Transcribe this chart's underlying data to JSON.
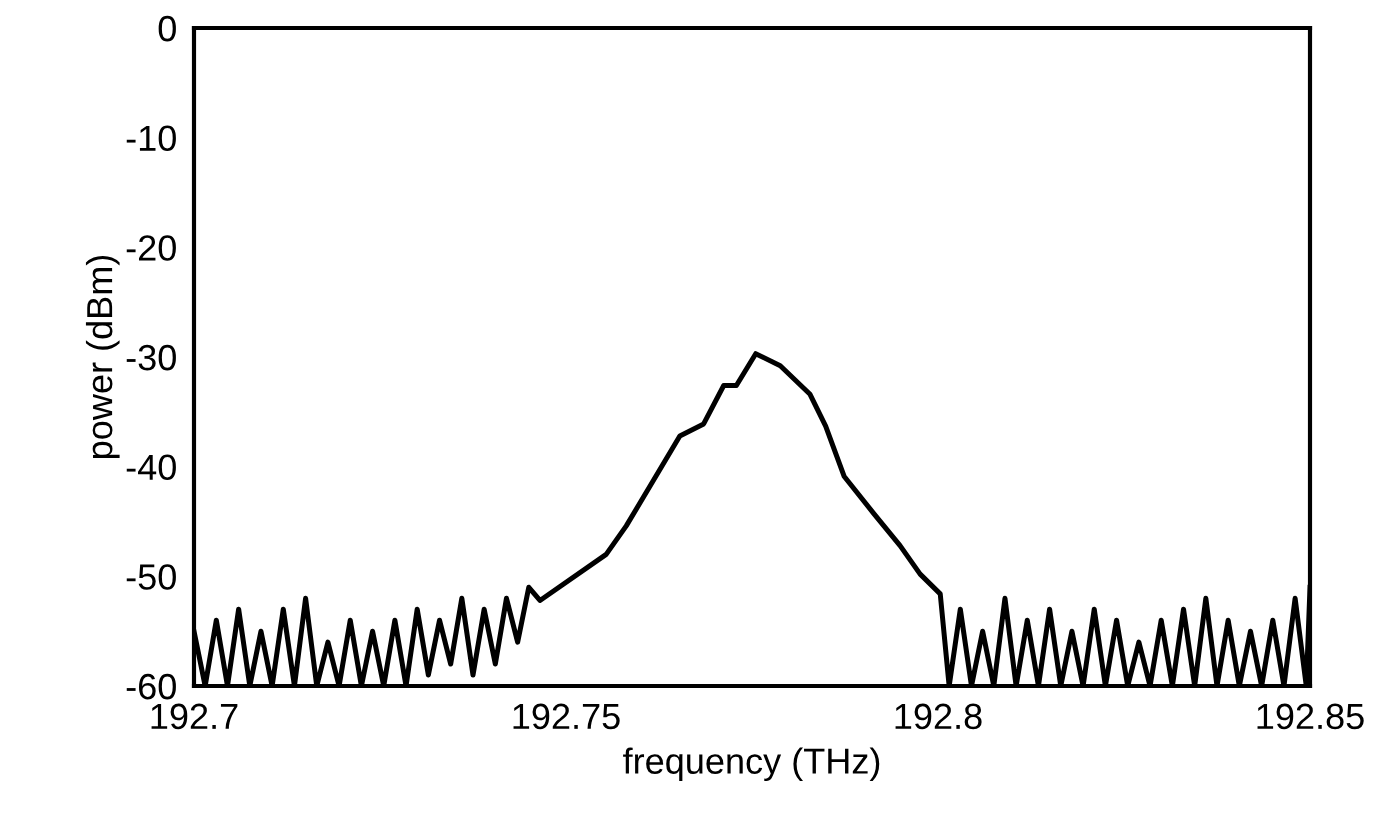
{
  "chart_data": {
    "type": "line",
    "xlabel": "frequency (THz)",
    "ylabel": "power (dBm)",
    "x": [
      192.7,
      192.7015,
      192.703,
      192.7045,
      192.706,
      192.7075,
      192.709,
      192.7105,
      192.712,
      192.7135,
      192.715,
      192.7165,
      192.718,
      192.7195,
      192.721,
      192.7225,
      192.724,
      192.7255,
      192.727,
      192.7285,
      192.73,
      192.7315,
      192.733,
      192.7345,
      192.736,
      192.7375,
      192.739,
      192.7405,
      192.742,
      192.7435,
      192.745,
      192.7465,
      192.7554,
      192.7581,
      192.7618,
      192.7653,
      192.7685,
      192.7712,
      192.7729,
      192.7755,
      192.7788,
      192.7828,
      192.7849,
      192.7874,
      192.7914,
      192.7949,
      192.7976,
      192.8003,
      192.8015,
      192.803,
      192.8045,
      192.806,
      192.8075,
      192.809,
      192.8105,
      192.812,
      192.8135,
      192.815,
      192.8165,
      192.818,
      192.8195,
      192.821,
      192.8225,
      192.824,
      192.8255,
      192.827,
      192.8285,
      192.83,
      192.8315,
      192.833,
      192.8345,
      192.836,
      192.8375,
      192.839,
      192.8405,
      192.842,
      192.8435,
      192.845,
      192.8465,
      192.848,
      192.8495,
      192.85
    ],
    "series": [
      {
        "color": "#000000",
        "values": [
          -55,
          -60,
          -54,
          -60,
          -53,
          -60,
          -55,
          -60,
          -53,
          -60,
          -52,
          -60,
          -56,
          -60,
          -54,
          -60,
          -55,
          -60,
          -54,
          -60,
          -53,
          -59,
          -54,
          -58,
          -52,
          -59,
          -53,
          -58,
          -52,
          -56,
          -51,
          -52.2,
          -48.0,
          -45.4,
          -41.2,
          -37.2,
          -36.1,
          -32.6,
          -32.6,
          -29.7,
          -30.8,
          -33.4,
          -36.3,
          -40.9,
          -44.3,
          -47.2,
          -49.8,
          -51.6,
          -60,
          -53,
          -60,
          -55,
          -60,
          -52,
          -60,
          -54,
          -60,
          -53,
          -60,
          -55,
          -60,
          -53,
          -60,
          -54,
          -60,
          -56,
          -60,
          -54,
          -60,
          -53,
          -60,
          -52,
          -60,
          -54,
          -60,
          -55,
          -60,
          -54,
          -60,
          -52,
          -60,
          -51
        ]
      }
    ],
    "xlim": [
      192.7,
      192.85
    ],
    "xticks": [
      192.7,
      192.75,
      192.8,
      192.85
    ],
    "ylim": [
      -60,
      0
    ],
    "yticks": [
      -60,
      -50,
      -40,
      -30,
      -20,
      -10,
      0
    ],
    "grid": false,
    "legend": false,
    "marker": "none",
    "line_style": "solid"
  }
}
